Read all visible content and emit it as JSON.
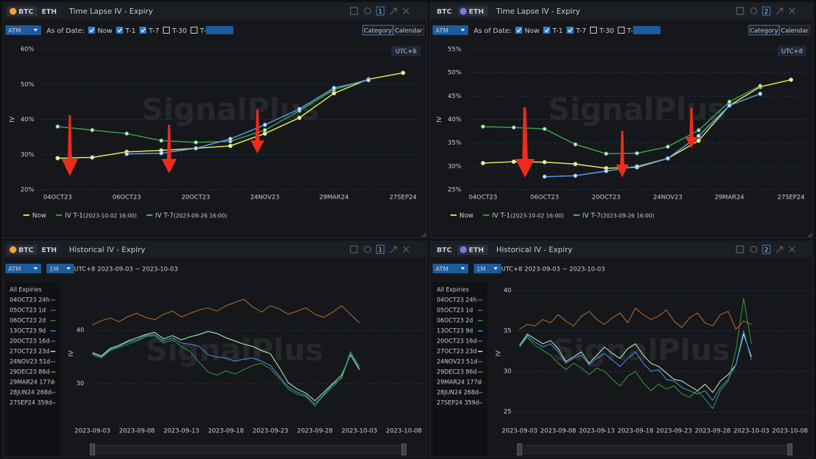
{
  "panels": [
    {
      "asset_tabs": [
        "BTC",
        "ETH"
      ],
      "active_asset": 0,
      "title": "Time Lapse IV - Expiry",
      "panel_number": 1,
      "measure": "ATM",
      "as_of_label": "As of Date:",
      "options": [
        {
          "label": "Now",
          "checked": true
        },
        {
          "label": "T-1",
          "checked": true
        },
        {
          "label": "T-7",
          "checked": true
        },
        {
          "label": "T-30",
          "checked": false
        },
        {
          "label": "T-",
          "checked": false
        }
      ],
      "view_modes": [
        "Category",
        "Calendar"
      ],
      "active_view": 0,
      "timezone": "UTC+8",
      "watermark": "SignalPlus"
    },
    {
      "asset_tabs": [
        "BTC",
        "ETH"
      ],
      "active_asset": 1,
      "title": "Time Lapse IV - Expiry",
      "panel_number": 2,
      "measure": "ATM",
      "as_of_label": "As of Date:",
      "options": [
        {
          "label": "Now",
          "checked": true
        },
        {
          "label": "T-1",
          "checked": true
        },
        {
          "label": "T-7",
          "checked": true
        },
        {
          "label": "T-30",
          "checked": false
        },
        {
          "label": "T-",
          "checked": false
        }
      ],
      "view_modes": [
        "Category",
        "Calendar"
      ],
      "active_view": 0,
      "timezone": "UTC+8",
      "watermark": "SignalPlus"
    },
    {
      "asset_tabs": [
        "BTC",
        "ETH"
      ],
      "active_asset": 0,
      "title": "Historical IV - Expiry",
      "panel_number": 1,
      "measure": "ATM",
      "period": "1M",
      "range_label": "UTC+8 2023-09-03 ~ 2023-10-03",
      "watermark": "SignalPlus"
    },
    {
      "asset_tabs": [
        "BTC",
        "ETH"
      ],
      "active_asset": 1,
      "title": "Historical IV - Expiry",
      "panel_number": 2,
      "measure": "ATM",
      "period": "1M",
      "range_label": "UTC+8 2023-09-03 ~ 2023-10-03",
      "watermark": "SignalPlus"
    }
  ],
  "chart_data": [
    {
      "type": "line",
      "categories": [
        "04OCT23",
        null,
        "06OCT23",
        null,
        "20OCT23",
        null,
        "24NOV23",
        null,
        "29MAR24",
        null,
        "27SEP24"
      ],
      "ylim": [
        20,
        60
      ],
      "yticks": [
        {
          "value": 20,
          "label": "20%"
        },
        {
          "value": 30,
          "label": "30%"
        },
        {
          "value": 40,
          "label": "40%"
        },
        {
          "value": 50,
          "label": "50%"
        },
        {
          "value": 60,
          "label": "60%"
        }
      ],
      "y_label": "IV",
      "grid": true,
      "markers": true,
      "series": [
        {
          "name": "Now",
          "color": "#e3e64a",
          "values": [
            29.0,
            29.2,
            30.8,
            31.2,
            31.8,
            32.5,
            36.0,
            40.5,
            47.5,
            51.5,
            53.3
          ]
        },
        {
          "name": "IV T-1",
          "timestamp": "(2023-10-02 16:00)",
          "color": "#3d9f4a",
          "values": [
            38.0,
            37.0,
            36.0,
            34.0,
            33.5,
            33.8,
            37.0,
            42.5,
            48.5,
            51.5,
            null
          ]
        },
        {
          "name": "IV T-7",
          "timestamp": "(2023-09-26 16:00)",
          "color": "#5b9be8",
          "values": [
            null,
            null,
            30.2,
            30.4,
            31.8,
            34.5,
            38.5,
            43.0,
            49.0,
            51.2,
            null
          ]
        }
      ]
    },
    {
      "type": "line",
      "categories": [
        "04OCT23",
        null,
        "06OCT23",
        null,
        "20OCT23",
        null,
        "24NOV23",
        null,
        "29MAR24",
        null,
        "27SEP24"
      ],
      "ylim": [
        25,
        55
      ],
      "yticks": [
        {
          "value": 25,
          "label": "25%"
        },
        {
          "value": 30,
          "label": "30%"
        },
        {
          "value": 35,
          "label": "35%"
        },
        {
          "value": 40,
          "label": "40%"
        },
        {
          "value": 45,
          "label": "45%"
        },
        {
          "value": 50,
          "label": "50%"
        },
        {
          "value": 55,
          "label": "55%"
        }
      ],
      "y_label": "IV",
      "grid": true,
      "markers": true,
      "series": [
        {
          "name": "Now",
          "color": "#e3e64a",
          "values": [
            30.7,
            31.0,
            30.9,
            30.5,
            29.6,
            29.8,
            31.7,
            35.5,
            43.0,
            47.0,
            48.5
          ]
        },
        {
          "name": "IV T-1",
          "timestamp": "(2023-10-02 16:00)",
          "color": "#3d9f4a",
          "values": [
            38.5,
            38.3,
            38.0,
            34.7,
            32.7,
            32.8,
            34.2,
            37.7,
            43.8,
            47.2,
            null
          ]
        },
        {
          "name": "IV T-7",
          "timestamp": "(2023-09-26 16:00)",
          "color": "#5b9be8",
          "values": [
            null,
            null,
            27.8,
            28.0,
            29.0,
            30.0,
            31.7,
            36.5,
            43.0,
            45.5,
            null
          ]
        }
      ]
    },
    {
      "type": "line",
      "x": [
        "2023-09-03",
        "2023-09-04",
        "2023-09-05",
        "2023-09-06",
        "2023-09-07",
        "2023-09-08",
        "2023-09-09",
        "2023-09-10",
        "2023-09-11",
        "2023-09-12",
        "2023-09-13",
        "2023-09-14",
        "2023-09-15",
        "2023-09-16",
        "2023-09-17",
        "2023-09-18",
        "2023-09-19",
        "2023-09-20",
        "2023-09-21",
        "2023-09-22",
        "2023-09-23",
        "2023-09-24",
        "2023-09-25",
        "2023-09-26",
        "2023-09-27",
        "2023-09-28",
        "2023-09-29",
        "2023-09-30",
        "2023-10-01",
        "2023-10-02",
        "2023-10-03"
      ],
      "xlim": [
        "2023-09-03",
        "2023-10-08"
      ],
      "xticks": [
        "2023-09-03",
        "2023-09-08",
        "2023-09-13",
        "2023-09-18",
        "2023-09-23",
        "2023-09-28",
        "2023-10-03",
        "2023-10-08"
      ],
      "ylim": [
        22.3,
        49
      ],
      "yticks": [
        30,
        40
      ],
      "y_label": "IV",
      "grid": true,
      "legend_title": "All Expiries",
      "series": [
        {
          "name": "04OCT23 24h",
          "visible": false
        },
        {
          "name": "05OCT23 1d",
          "visible": false
        },
        {
          "name": "06OCT23 2d",
          "visible": true,
          "color": "#2f9b3f",
          "values": [
            35.4,
            34.8,
            36.2,
            36.8,
            37.4,
            38.0,
            38.8,
            39.0,
            37.6,
            38.2,
            37.0,
            36.0,
            34.0,
            32.2,
            31.6,
            32.4,
            31.8,
            32.6,
            33.4,
            33.8,
            32.8,
            31.0,
            29.0,
            28.0,
            27.6,
            25.8,
            27.8,
            29.4,
            31.2,
            36.0,
            33.2
          ]
        },
        {
          "name": "13OCT23 9d",
          "visible": true,
          "color": "#4a8fe0",
          "values": [
            35.6,
            35.0,
            36.4,
            37.0,
            37.8,
            38.2,
            39.0,
            39.2,
            38.0,
            38.6,
            37.6,
            37.4,
            37.0,
            35.4,
            35.0,
            34.8,
            34.2,
            34.6,
            34.8,
            34.2,
            33.4,
            31.4,
            29.4,
            28.4,
            27.8,
            26.2,
            28.0,
            29.8,
            31.0,
            35.6,
            32.8
          ]
        },
        {
          "name": "20OCT23 16d",
          "visible": false
        },
        {
          "name": "27OCT23 23d",
          "visible": true,
          "color": "#b8f3c0",
          "values": [
            35.8,
            35.2,
            36.6,
            37.2,
            38.0,
            38.6,
            39.2,
            39.6,
            38.4,
            39.0,
            38.2,
            38.8,
            39.2,
            39.8,
            39.4,
            38.6,
            38.0,
            37.4,
            37.0,
            36.2,
            35.6,
            33.0,
            30.2,
            29.0,
            28.2,
            26.8,
            28.4,
            30.0,
            31.6,
            35.4,
            32.6
          ]
        },
        {
          "name": "24NOV23 51d",
          "visible": false
        },
        {
          "name": "29DEC23 86d",
          "visible": true,
          "color": "#b86a28",
          "values": [
            41.0,
            41.8,
            42.3,
            41.6,
            42.6,
            43.2,
            42.4,
            42.0,
            43.0,
            43.6,
            42.5,
            43.2,
            43.8,
            44.2,
            43.6,
            44.6,
            45.2,
            45.8,
            44.4,
            43.4,
            44.6,
            44.0,
            43.0,
            43.6,
            44.2,
            43.0,
            42.4,
            43.4,
            44.6,
            43.0,
            41.4
          ]
        },
        {
          "name": "29MAR24 177d",
          "visible": false
        },
        {
          "name": "28JUN24 268d",
          "visible": false
        },
        {
          "name": "27SEP24 359d",
          "visible": false
        }
      ]
    },
    {
      "type": "line",
      "x": [
        "2023-09-03",
        "2023-09-04",
        "2023-09-05",
        "2023-09-06",
        "2023-09-07",
        "2023-09-08",
        "2023-09-09",
        "2023-09-10",
        "2023-09-11",
        "2023-09-12",
        "2023-09-13",
        "2023-09-14",
        "2023-09-15",
        "2023-09-16",
        "2023-09-17",
        "2023-09-18",
        "2023-09-19",
        "2023-09-20",
        "2023-09-21",
        "2023-09-22",
        "2023-09-23",
        "2023-09-24",
        "2023-09-25",
        "2023-09-26",
        "2023-09-27",
        "2023-09-28",
        "2023-09-29",
        "2023-09-30",
        "2023-10-01",
        "2023-10-02",
        "2023-10-03"
      ],
      "xlim": [
        "2023-09-03",
        "2023-10-08"
      ],
      "xticks": [
        "2023-09-03",
        "2023-09-08",
        "2023-09-13",
        "2023-09-18",
        "2023-09-23",
        "2023-09-28",
        "2023-10-03",
        "2023-10-08"
      ],
      "ylim": [
        23.4,
        41
      ],
      "yticks": [
        25,
        30,
        35,
        40
      ],
      "y_label": "IV",
      "grid": true,
      "legend_title": "All Expiries",
      "series": [
        {
          "name": "04OCT23 24h",
          "visible": false
        },
        {
          "name": "05OCT23 1d",
          "visible": false
        },
        {
          "name": "06OCT23 2d",
          "visible": true,
          "color": "#2f9b3f",
          "values": [
            33.0,
            34.2,
            33.2,
            32.6,
            32.0,
            31.0,
            30.2,
            31.0,
            30.4,
            29.6,
            30.4,
            30.0,
            29.0,
            28.2,
            29.4,
            30.0,
            28.6,
            27.6,
            28.4,
            27.8,
            28.2,
            27.2,
            26.8,
            27.6,
            26.6,
            25.4,
            27.6,
            28.8,
            32.6,
            39.0,
            33.4
          ]
        },
        {
          "name": "13OCT23 9d",
          "visible": true,
          "color": "#4a8fe0",
          "values": [
            33.1,
            34.4,
            33.6,
            33.0,
            33.4,
            32.4,
            31.0,
            31.6,
            32.0,
            30.8,
            31.6,
            32.2,
            31.4,
            30.6,
            31.6,
            32.4,
            31.0,
            30.0,
            30.2,
            29.0,
            28.8,
            28.0,
            27.6,
            27.2,
            27.6,
            26.4,
            28.0,
            29.0,
            30.8,
            35.0,
            31.4
          ]
        },
        {
          "name": "20OCT23 16d",
          "visible": false
        },
        {
          "name": "27OCT23 23d",
          "visible": true,
          "color": "#b8f3c0",
          "values": [
            33.2,
            34.6,
            34.0,
            33.4,
            33.8,
            32.8,
            31.2,
            31.8,
            32.4,
            31.0,
            32.0,
            33.0,
            32.2,
            31.6,
            32.8,
            33.4,
            32.0,
            31.0,
            30.6,
            29.8,
            29.0,
            28.8,
            28.2,
            27.6,
            28.4,
            27.4,
            28.8,
            29.6,
            30.8,
            34.6,
            31.8
          ]
        },
        {
          "name": "24NOV23 51d",
          "visible": false
        },
        {
          "name": "29DEC23 86d",
          "visible": true,
          "color": "#b86a28",
          "values": [
            35.2,
            35.8,
            35.6,
            36.4,
            36.0,
            37.0,
            36.2,
            35.6,
            36.8,
            37.4,
            36.4,
            35.8,
            36.6,
            37.2,
            36.0,
            37.8,
            37.0,
            36.4,
            36.8,
            37.6,
            36.2,
            35.4,
            36.6,
            37.2,
            36.0,
            35.6,
            37.0,
            37.4,
            35.2,
            36.2,
            35.8
          ]
        },
        {
          "name": "29MAR24 177d",
          "visible": false
        },
        {
          "name": "28JUN24 268d",
          "visible": false
        },
        {
          "name": "27SEP24 359d",
          "visible": false
        }
      ]
    }
  ]
}
